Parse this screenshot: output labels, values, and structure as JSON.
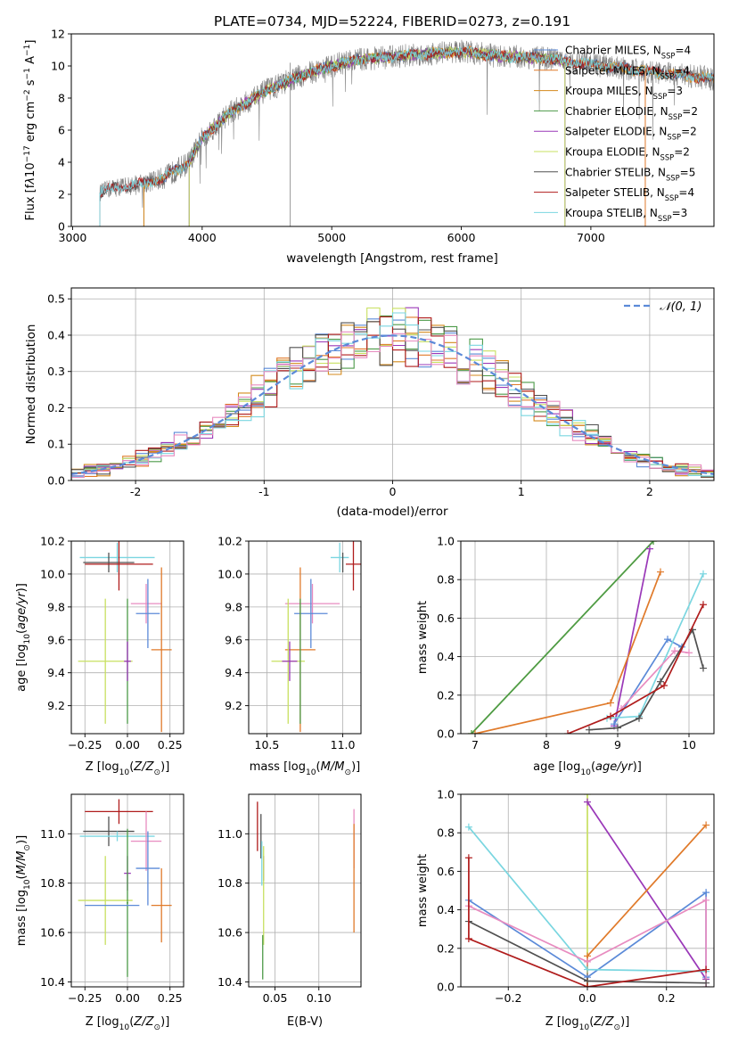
{
  "colors": {
    "chabrier_miles": "#5b8ad8",
    "salpeter_miles": "#e07a2a",
    "kroupa_miles": "#d48a1c",
    "chabrier_elodie": "#4c9a48",
    "salpeter_elodie": "#9a38b8",
    "kroupa_elodie": "#c8e060",
    "chabrier_stelib": "#505050",
    "salpeter_stelib": "#b01c1c",
    "kroupa_stelib": "#7ad6e0",
    "pink": "#e88cc0",
    "gaussian": "#5b8ad8"
  },
  "chart_data": [
    {
      "id": "spectrum",
      "type": "line",
      "title": "PLATE=0734, MJD=52224, FIBERID=0273, z=0.191",
      "xlabel": "wavelength [Angstrom, rest frame]",
      "ylabel_parts": [
        "Flux [f",
        "λ",
        "10",
        "−17",
        " erg cm",
        "−2",
        " s",
        "−1",
        " A",
        "−1",
        "]"
      ],
      "xlim": [
        2990,
        7950
      ],
      "ylim": [
        0,
        12
      ],
      "xticks": [
        3000,
        4000,
        5000,
        6000,
        7000
      ],
      "yticks": [
        0,
        2,
        4,
        6,
        8,
        10,
        12
      ],
      "grid": false,
      "legend_position": "upper-right",
      "observed_anchor": {
        "x": [
          3210,
          3300,
          3500,
          3700,
          3900,
          4000,
          4200,
          4500,
          4800,
          5000,
          5200,
          5500,
          5800,
          6000,
          6300,
          6600,
          7000,
          7300,
          7500,
          7950
        ],
        "y": [
          2.1,
          2.4,
          2.6,
          3.0,
          4.0,
          5.5,
          7.0,
          8.5,
          9.5,
          10.0,
          10.4,
          10.6,
          10.8,
          10.9,
          10.6,
          10.5,
          10.1,
          9.8,
          9.6,
          9.2
        ]
      },
      "series": [
        {
          "key": "chabrier_miles",
          "legend_parts": [
            "Chabrier MILES, N",
            "SSP",
            "=4"
          ],
          "start": 3550,
          "end": 7950
        },
        {
          "key": "salpeter_miles",
          "legend_parts": [
            "Salpeter MILES, N",
            "SSP",
            "=4"
          ],
          "start": 3550,
          "end": 7950
        },
        {
          "key": "kroupa_miles",
          "legend_parts": [
            "Kroupa MILES, N",
            "SSP",
            "=3"
          ],
          "start": 3550,
          "end": 7950
        },
        {
          "key": "chabrier_elodie",
          "legend_parts": [
            "Chabrier ELODIE, N",
            "SSP",
            "=2"
          ],
          "start": 3900,
          "end": 6800
        },
        {
          "key": "salpeter_elodie",
          "legend_parts": [
            "Salpeter ELODIE, N",
            "SSP",
            "=2"
          ],
          "start": 3900,
          "end": 6800
        },
        {
          "key": "kroupa_elodie",
          "legend_parts": [
            "Kroupa ELODIE, N",
            "SSP",
            "=2"
          ],
          "start": 3900,
          "end": 6800
        },
        {
          "key": "chabrier_stelib",
          "legend_parts": [
            "Chabrier STELIB, N",
            "SSP",
            "=5"
          ],
          "start": 3210,
          "end": 7950
        },
        {
          "key": "salpeter_stelib",
          "legend_parts": [
            "Salpeter STELIB, N",
            "SSP",
            "=4"
          ],
          "start": 3210,
          "end": 7950
        },
        {
          "key": "kroupa_stelib",
          "legend_parts": [
            "Kroupa STELIB, N",
            "SSP",
            "=3"
          ],
          "start": 3210,
          "end": 7950
        }
      ]
    },
    {
      "id": "residuals",
      "type": "histogram",
      "xlabel": "(data-model)/error",
      "ylabel": "Normed distribution",
      "xlim": [
        -2.5,
        2.5
      ],
      "ylim": [
        0,
        0.53
      ],
      "xticks": [
        -2,
        -1,
        0,
        1,
        2
      ],
      "yticks": [
        0.0,
        0.1,
        0.2,
        0.3,
        0.4,
        0.5
      ],
      "grid": true,
      "legend": "𝒩(0, 1)",
      "legend_position": "upper-right",
      "bin_width": 0.1,
      "series_keys": [
        "chabrier_miles",
        "salpeter_miles",
        "kroupa_miles",
        "chabrier_elodie",
        "salpeter_elodie",
        "kroupa_elodie",
        "chabrier_stelib",
        "salpeter_stelib",
        "kroupa_stelib",
        "pink"
      ]
    },
    {
      "id": "age_vs_z",
      "type": "errorbar",
      "xlabel_parts": [
        "Z [log",
        "10",
        "(",
        "Z/Z",
        "⊙",
        ")]"
      ],
      "ylabel_parts": [
        "age  [log",
        "10",
        "(",
        "age/yr",
        ")]"
      ],
      "xlim": [
        -0.33,
        0.33
      ],
      "ylim": [
        9.03,
        10.2
      ],
      "xticks": [
        -0.25,
        0.0,
        0.25
      ],
      "xticklabels": [
        "−0.25",
        "0.00",
        "0.25"
      ],
      "yticks": [
        9.2,
        9.4,
        9.6,
        9.8,
        10.0,
        10.2
      ],
      "grid": true,
      "points": [
        {
          "key": "kroupa_stelib",
          "x": -0.06,
          "xerr": 0.22,
          "y": 10.1,
          "yerr": 0.09
        },
        {
          "key": "chabrier_stelib",
          "x": -0.11,
          "xerr": 0.15,
          "y": 10.07,
          "yerr": 0.06
        },
        {
          "key": "salpeter_stelib",
          "x": -0.05,
          "xerr": 0.2,
          "y": 10.06,
          "yerr": 0.16
        },
        {
          "key": "pink",
          "x": 0.11,
          "xerr": 0.09,
          "y": 9.82,
          "yerr": 0.12
        },
        {
          "key": "chabrier_miles",
          "x": 0.12,
          "xerr": 0.07,
          "y": 9.76,
          "yerr": 0.21
        },
        {
          "key": "salpeter_miles",
          "x": 0.2,
          "xerr": 0.06,
          "y": 9.54,
          "yerr": 0.5
        },
        {
          "key": "kroupa_elodie",
          "x": -0.13,
          "xerr": 0.16,
          "y": 9.47,
          "yerr": 0.38
        },
        {
          "key": "chabrier_elodie",
          "x": 0.0,
          "xerr": 0.005,
          "y": 9.47,
          "yerr": 0.38
        },
        {
          "key": "salpeter_elodie",
          "x": 0.0,
          "xerr": 0.02,
          "y": 9.47,
          "yerr": 0.12
        }
      ]
    },
    {
      "id": "age_vs_mass",
      "type": "errorbar",
      "xlabel_parts": [
        "mass [log",
        "10",
        "(",
        "M/M",
        "⊙",
        ")]"
      ],
      "xlim": [
        10.38,
        11.12
      ],
      "ylim": [
        9.03,
        10.2
      ],
      "xticks": [
        10.5,
        11.0
      ],
      "xticklabels": [
        "10.5",
        "11.0"
      ],
      "yticks": [
        9.2,
        9.4,
        9.6,
        9.8,
        10.0,
        10.2
      ],
      "grid": true,
      "points": [
        {
          "key": "kroupa_stelib",
          "x": 10.98,
          "xerr": 0.06,
          "y": 10.1,
          "yerr": 0.09
        },
        {
          "key": "chabrier_stelib",
          "x": 11.0,
          "xerr": 0.0,
          "y": 10.07,
          "yerr": 0.06
        },
        {
          "key": "salpeter_stelib",
          "x": 11.07,
          "xerr": 0.05,
          "y": 10.06,
          "yerr": 0.16
        },
        {
          "key": "pink",
          "x": 10.8,
          "xerr": 0.18,
          "y": 9.82,
          "yerr": 0.12
        },
        {
          "key": "chabrier_miles",
          "x": 10.79,
          "xerr": 0.11,
          "y": 9.76,
          "yerr": 0.21
        },
        {
          "key": "salpeter_miles",
          "x": 10.72,
          "xerr": 0.1,
          "y": 9.54,
          "yerr": 0.5
        },
        {
          "key": "kroupa_elodie",
          "x": 10.64,
          "xerr": 0.11,
          "y": 9.47,
          "yerr": 0.38
        },
        {
          "key": "chabrier_elodie",
          "x": 10.72,
          "xerr": 0.0,
          "y": 9.47,
          "yerr": 0.38
        },
        {
          "key": "salpeter_elodie",
          "x": 10.65,
          "xerr": 0.05,
          "y": 9.47,
          "yerr": 0.12
        }
      ]
    },
    {
      "id": "weight_vs_age",
      "type": "line",
      "xlabel_parts": [
        "age  [log",
        "10",
        "(",
        "age/yr",
        ")]"
      ],
      "ylabel": "mass weight",
      "xlim": [
        6.8,
        10.35
      ],
      "ylim": [
        0,
        1
      ],
      "xticks": [
        7,
        8,
        9,
        10
      ],
      "xticklabels": [
        "7",
        "8",
        "9",
        "10"
      ],
      "yticks": [
        0.0,
        0.2,
        0.4,
        0.6,
        0.8,
        1.0
      ],
      "grid": true,
      "series": [
        {
          "key": "kroupa_elodie",
          "x": [
            6.95,
            9.5
          ],
          "y": [
            0.0,
            1.0
          ]
        },
        {
          "key": "chabrier_elodie",
          "x": [
            6.95,
            9.5
          ],
          "y": [
            0.0,
            1.0
          ]
        },
        {
          "key": "salpeter_elodie",
          "x": [
            8.95,
            9.45
          ],
          "y": [
            0.04,
            0.96
          ]
        },
        {
          "key": "salpeter_miles",
          "x": [
            7.0,
            8.9,
            9.6
          ],
          "y": [
            0.0,
            0.16,
            0.84
          ]
        },
        {
          "key": "chabrier_miles",
          "x": [
            8.95,
            9.7,
            9.9
          ],
          "y": [
            0.05,
            0.49,
            0.45
          ]
        },
        {
          "key": "kroupa_stelib",
          "x": [
            8.85,
            9.3,
            10.2
          ],
          "y": [
            0.08,
            0.09,
            0.83
          ]
        },
        {
          "key": "pink",
          "x": [
            9.05,
            9.8,
            10.0
          ],
          "y": [
            0.13,
            0.43,
            0.42
          ]
        },
        {
          "key": "chabrier_stelib",
          "x": [
            8.6,
            9.0,
            9.3,
            9.6,
            10.05,
            10.2
          ],
          "y": [
            0.02,
            0.03,
            0.08,
            0.27,
            0.54,
            0.34
          ]
        },
        {
          "key": "salpeter_stelib",
          "x": [
            8.3,
            8.9,
            9.65,
            10.2
          ],
          "y": [
            0.0,
            0.09,
            0.25,
            0.67
          ]
        }
      ]
    },
    {
      "id": "mass_vs_z",
      "type": "errorbar",
      "xlabel_parts": [
        "Z [log",
        "10",
        "(",
        "Z/Z",
        "⊙",
        ")]"
      ],
      "ylabel_parts": [
        "mass [log",
        "10",
        "(",
        "M/M",
        "⊙",
        ")]"
      ],
      "xlim": [
        -0.33,
        0.33
      ],
      "ylim": [
        10.38,
        11.16
      ],
      "xticks": [
        -0.25,
        0.0,
        0.25
      ],
      "xticklabels": [
        "−0.25",
        "0.00",
        "0.25"
      ],
      "yticks": [
        10.4,
        10.6,
        10.8,
        11.0
      ],
      "grid": true,
      "points": [
        {
          "key": "salpeter_stelib",
          "x": -0.05,
          "xerr": 0.2,
          "y": 11.09,
          "yerr": 0.05
        },
        {
          "key": "chabrier_stelib",
          "x": -0.11,
          "xerr": 0.15,
          "y": 11.01,
          "yerr": 0.06
        },
        {
          "key": "kroupa_stelib",
          "x": -0.06,
          "xerr": 0.22,
          "y": 10.99,
          "yerr": 0.02
        },
        {
          "key": "pink",
          "x": 0.11,
          "xerr": 0.09,
          "y": 10.97,
          "yerr": 0.12
        },
        {
          "key": "chabrier_miles",
          "x": 0.12,
          "xerr": 0.07,
          "y": 10.86,
          "yerr": 0.15
        },
        {
          "key": "salpeter_elodie",
          "x": 0.0,
          "xerr": 0.02,
          "y": 10.84,
          "yerr": 0.07
        },
        {
          "key": "kroupa_elodie",
          "x": -0.13,
          "xerr": 0.16,
          "y": 10.73,
          "yerr": 0.18
        },
        {
          "key": "chabrier_elodie",
          "x": 0.0,
          "xerr": 0.005,
          "y": 10.72,
          "yerr": 0.3
        },
        {
          "key": "salpeter_miles",
          "x": 0.2,
          "xerr": 0.06,
          "y": 10.71,
          "yerr": 0.15
        },
        {
          "key": "chabrier_miles",
          "x": -0.09,
          "xerr": 0.16,
          "y": 10.71,
          "yerr": 0.0
        }
      ]
    },
    {
      "id": "mass_vs_ebv",
      "type": "errorbar",
      "xlabel": "E(B-V)",
      "xlim": [
        0.02,
        0.148
      ],
      "ylim": [
        10.38,
        11.16
      ],
      "xticks": [
        0.05,
        0.1
      ],
      "xticklabels": [
        "0.05",
        "0.10"
      ],
      "yticks": [
        10.4,
        10.6,
        10.8,
        11.0
      ],
      "grid": true,
      "points": [
        {
          "key": "salpeter_stelib",
          "x": 0.03,
          "xerr": 0.0,
          "y": 11.03,
          "yerr": 0.1
        },
        {
          "key": "chabrier_stelib",
          "x": 0.034,
          "xerr": 0.0,
          "y": 10.99,
          "yerr": 0.09
        },
        {
          "key": "kroupa_stelib",
          "x": 0.035,
          "xerr": 0.0,
          "y": 10.88,
          "yerr": 0.09
        },
        {
          "key": "salpeter_elodie",
          "x": 0.037,
          "xerr": 0.0,
          "y": 10.86,
          "yerr": 0.05
        },
        {
          "key": "kroupa_elodie",
          "x": 0.037,
          "xerr": 0.0,
          "y": 10.75,
          "yerr": 0.2
        },
        {
          "key": "chabrier_elodie",
          "x": 0.036,
          "xerr": 0.0,
          "y": 10.5,
          "yerr": 0.09
        },
        {
          "key": "pink",
          "x": 0.14,
          "xerr": 0.0,
          "y": 10.98,
          "yerr": 0.12
        },
        {
          "key": "salpeter_miles",
          "x": 0.14,
          "xerr": 0.0,
          "y": 10.82,
          "yerr": 0.22
        }
      ]
    },
    {
      "id": "weight_vs_z",
      "type": "line",
      "xlabel_parts": [
        "Z [log",
        "10",
        "(",
        "Z/Z",
        "⊙",
        ")]"
      ],
      "ylabel": "mass weight",
      "xlim": [
        -0.32,
        0.32
      ],
      "ylim": [
        0,
        1
      ],
      "xticks": [
        -0.2,
        0.0,
        0.2
      ],
      "xticklabels": [
        "−0.2",
        "0.0",
        "0.2"
      ],
      "yticks": [
        0.0,
        0.2,
        0.4,
        0.6,
        0.8,
        1.0
      ],
      "grid": true,
      "series": [
        {
          "key": "kroupa_elodie",
          "x": [
            0.0,
            0.0
          ],
          "y": [
            0.0,
            1.0
          ]
        },
        {
          "key": "salpeter_elodie",
          "x": [
            0.0,
            0.3
          ],
          "y": [
            0.96,
            0.04
          ]
        },
        {
          "key": "salpeter_miles",
          "x": [
            0.0,
            0.0,
            0.3
          ],
          "y": [
            0.0,
            0.16,
            0.84
          ]
        },
        {
          "key": "chabrier_miles",
          "x": [
            -0.3,
            0.0,
            0.3,
            0.3
          ],
          "y": [
            0.45,
            0.05,
            0.49,
            0.05
          ]
        },
        {
          "key": "kroupa_stelib",
          "x": [
            -0.3,
            0.0,
            0.3
          ],
          "y": [
            0.83,
            0.09,
            0.08
          ]
        },
        {
          "key": "pink",
          "x": [
            -0.3,
            0.0,
            0.3,
            0.3
          ],
          "y": [
            0.42,
            0.13,
            0.45,
            0.0
          ]
        },
        {
          "key": "chabrier_stelib",
          "x": [
            -0.3,
            0.0,
            0.3
          ],
          "y": [
            0.34,
            0.03,
            0.02
          ]
        },
        {
          "key": "salpeter_stelib",
          "x": [
            -0.3,
            -0.3,
            0.0,
            0.3
          ],
          "y": [
            0.67,
            0.25,
            0.0,
            0.09
          ]
        }
      ]
    }
  ]
}
